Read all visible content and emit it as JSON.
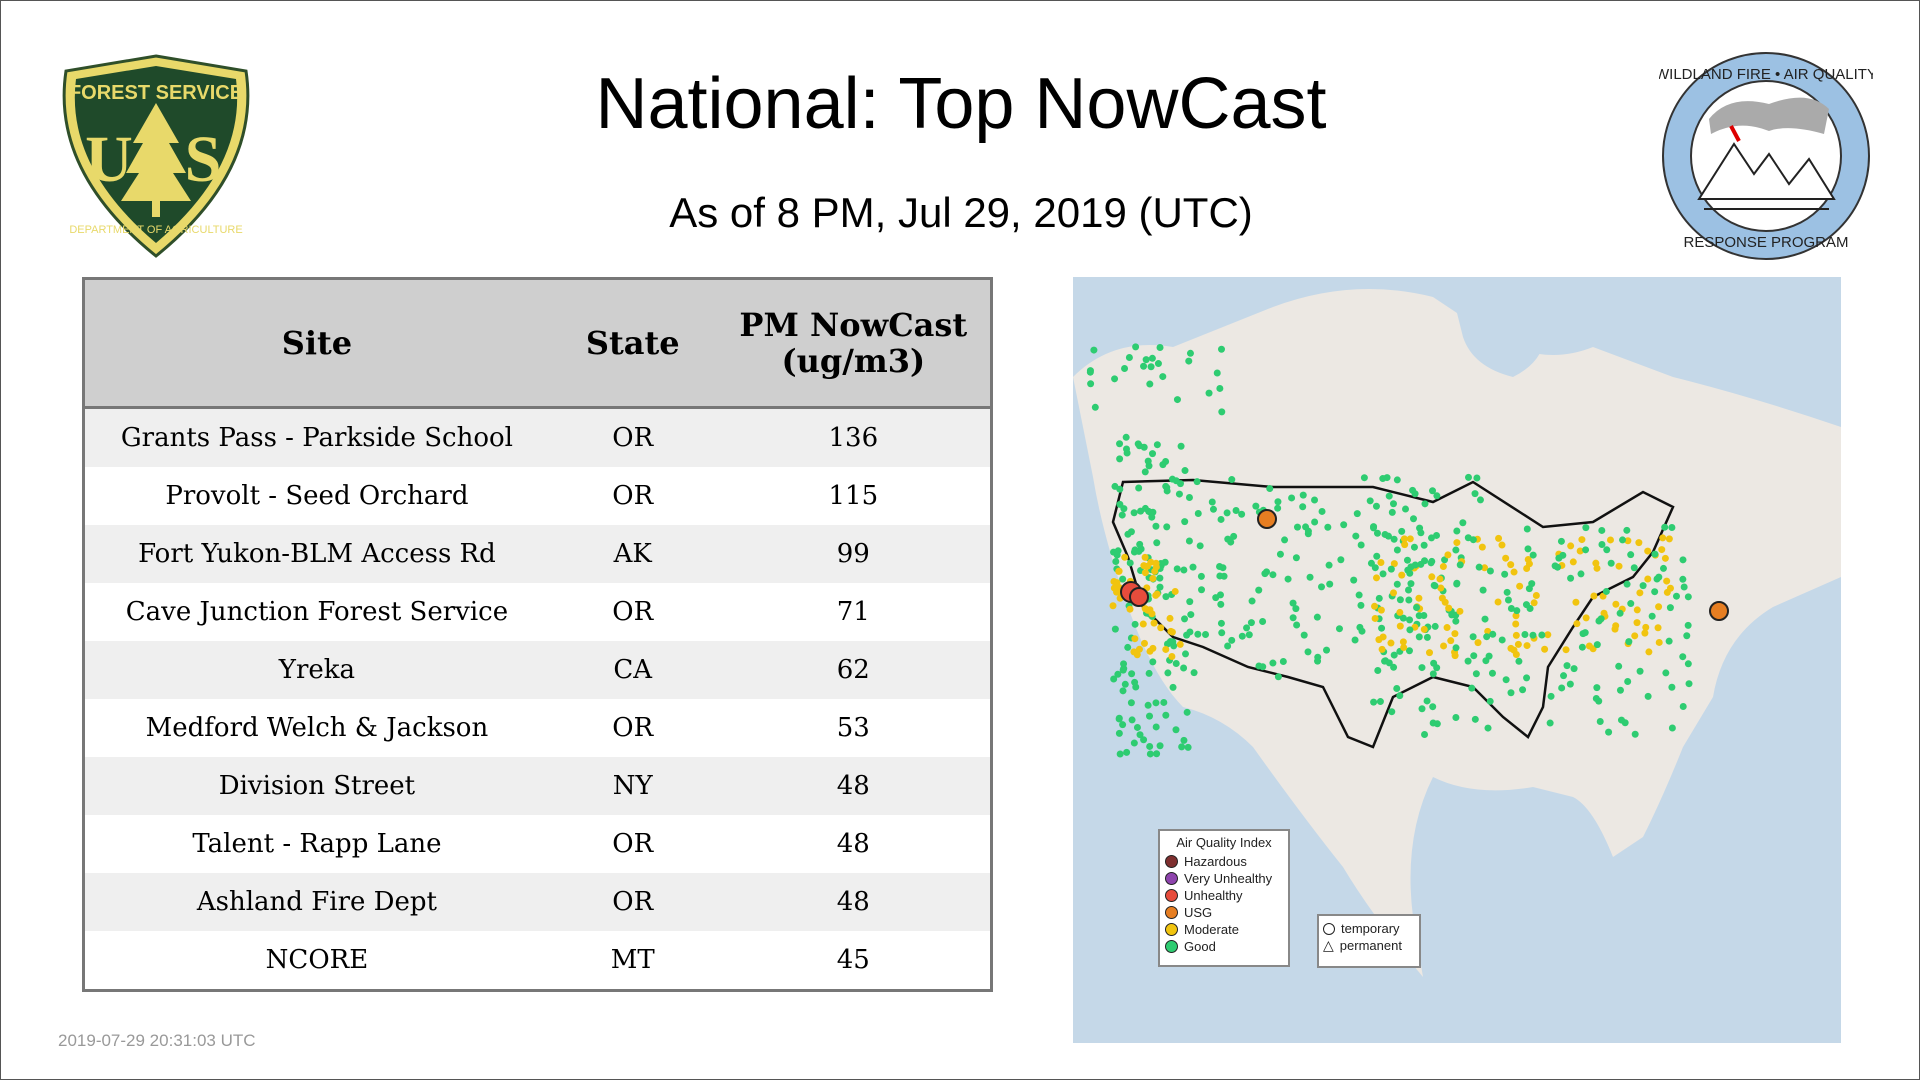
{
  "header": {
    "title": "National: Top NowCast",
    "subtitle": "As of  8 PM, Jul 29, 2019 (UTC)"
  },
  "logos": {
    "left": "FOREST SERVICE U S DEPARTMENT OF AGRICULTURE",
    "right": "WILDLAND FIRE • AIR QUALITY RESPONSE PROGRAM"
  },
  "table": {
    "headers": [
      "Site",
      "State",
      "PM NowCast (ug/m3)"
    ],
    "rows": [
      {
        "site": "Grants Pass - Parkside School",
        "state": "OR",
        "value": "136"
      },
      {
        "site": "Provolt - Seed Orchard",
        "state": "OR",
        "value": "115"
      },
      {
        "site": "Fort Yukon-BLM Access Rd",
        "state": "AK",
        "value": "99"
      },
      {
        "site": "Cave Junction Forest Service",
        "state": "OR",
        "value": "71"
      },
      {
        "site": "Yreka",
        "state": "CA",
        "value": "62"
      },
      {
        "site": "Medford Welch & Jackson",
        "state": "OR",
        "value": "53"
      },
      {
        "site": "Division Street",
        "state": "NY",
        "value": "48"
      },
      {
        "site": "Talent - Rapp Lane",
        "state": "OR",
        "value": "48"
      },
      {
        "site": "Ashland Fire Dept",
        "state": "OR",
        "value": "48"
      },
      {
        "site": "NCORE",
        "state": "MT",
        "value": "45"
      }
    ]
  },
  "legend": {
    "title": "Air Quality Index",
    "items": [
      {
        "label": "Hazardous",
        "color": "#7e2f2f"
      },
      {
        "label": "Very Unhealthy",
        "color": "#8e44ad"
      },
      {
        "label": "Unhealthy",
        "color": "#e74c3c"
      },
      {
        "label": "USG",
        "color": "#e67e22"
      },
      {
        "label": "Moderate",
        "color": "#f1c40f"
      },
      {
        "label": "Good",
        "color": "#2ecc71"
      }
    ],
    "shapes": [
      {
        "label": "temporary",
        "icon": "circle-icon"
      },
      {
        "label": "permanent",
        "icon": "triangle-icon"
      }
    ]
  },
  "timestamp": "2019-07-29 20:31:03 UTC"
}
